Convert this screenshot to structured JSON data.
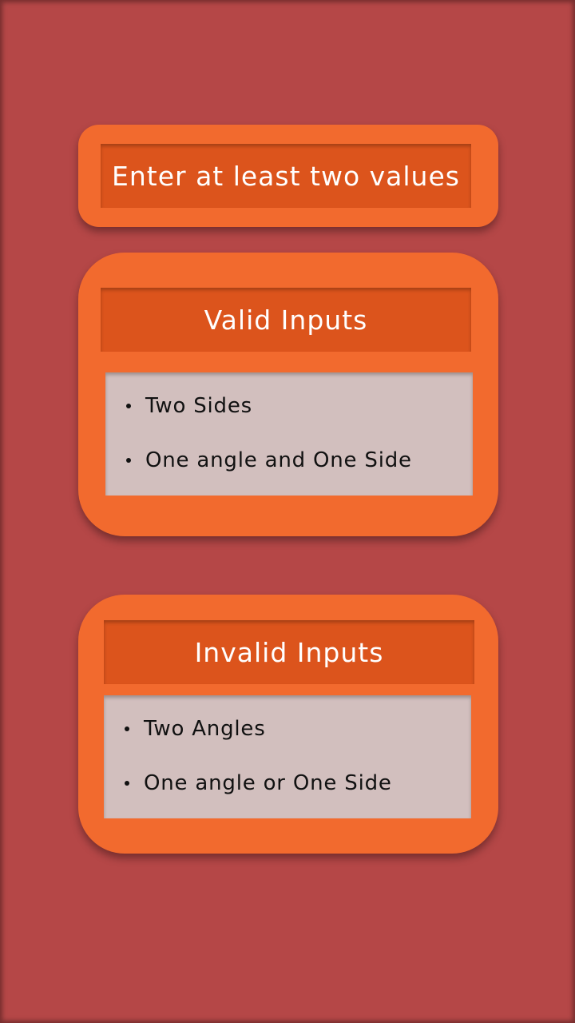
{
  "header": {
    "title": "Enter at least two values"
  },
  "valid": {
    "title": "Valid Inputs",
    "items": [
      "Two Sides",
      "One angle and One Side"
    ]
  },
  "invalid": {
    "title": "Invalid Inputs",
    "items": [
      "Two Angles",
      "One angle or One Side"
    ]
  },
  "colors": {
    "background": "#b54747",
    "card": "#f26a2e",
    "bar": "#dc541c",
    "list": "#d2bfbe"
  }
}
